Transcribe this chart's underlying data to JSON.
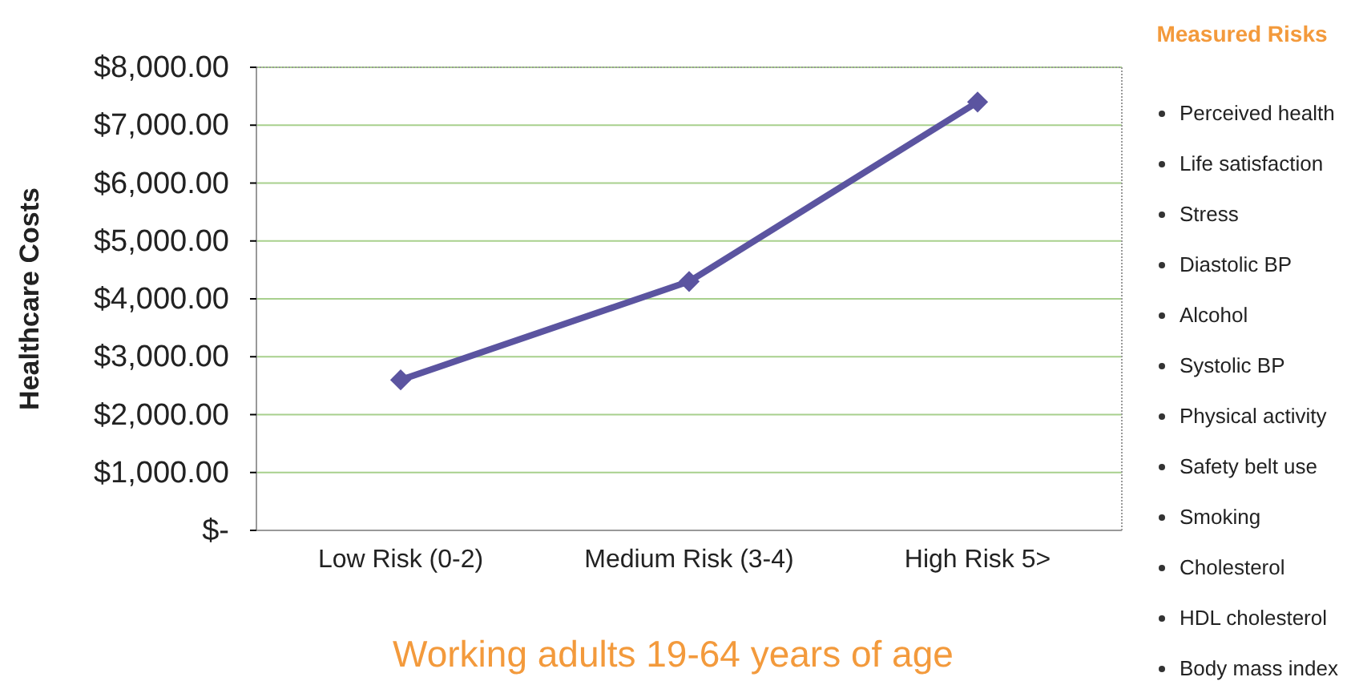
{
  "chart_data": {
    "type": "line",
    "xlabel": "Working adults 19-64 years of age",
    "ylabel": "Healthcare Costs",
    "categories": [
      "Low Risk (0-2)",
      "Medium Risk (3-4)",
      "High Risk 5>"
    ],
    "series": [
      {
        "color": "#5b54a0",
        "values": [
          2600,
          4300,
          7400
        ]
      }
    ],
    "ylim": [
      0,
      8000
    ],
    "yticks": [
      {
        "value": 0,
        "label": "$-"
      },
      {
        "value": 1000,
        "label": "$1,000.00"
      },
      {
        "value": 2000,
        "label": "$2,000.00"
      },
      {
        "value": 3000,
        "label": "$3,000.00"
      },
      {
        "value": 4000,
        "label": "$4,000.00"
      },
      {
        "value": 5000,
        "label": "$5,000.00"
      },
      {
        "value": 6000,
        "label": "$6,000.00"
      },
      {
        "value": 7000,
        "label": "$7,000.00"
      },
      {
        "value": 8000,
        "label": "$8,000.00"
      }
    ],
    "grid": "y",
    "marker": "diamond",
    "line_style": "solid",
    "annotations": [
      "Measured Risks",
      "Perceived health",
      "Life satisfaction",
      "Stress",
      "Diastolic BP",
      "Alcohol",
      "Systolic BP",
      "Physical activity",
      "Safety belt use",
      "Smoking",
      "Cholesterol",
      "HDL cholesterol",
      "Body mass index"
    ]
  }
}
